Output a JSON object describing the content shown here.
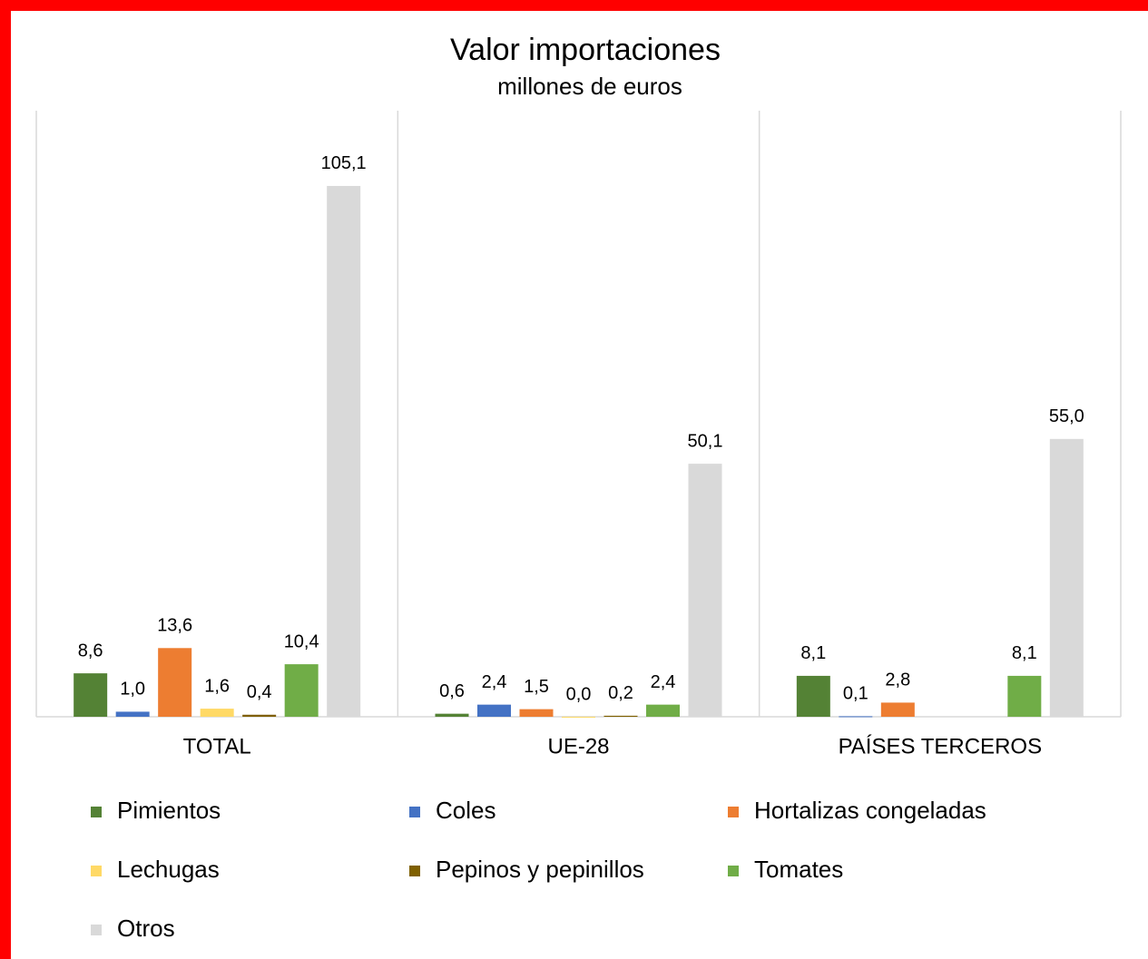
{
  "chart_data": {
    "type": "bar",
    "title": "Valor importaciones",
    "subtitle": "millones de euros",
    "categories": [
      "TOTAL",
      "UE-28",
      "PAÍSES TERCEROS"
    ],
    "ylim": [
      0,
      120
    ],
    "series": [
      {
        "name": "Pimientos",
        "color": "#548235",
        "values": [
          8.6,
          0.6,
          8.1
        ],
        "value_labels": [
          "8,6",
          "0,6",
          "8,1"
        ]
      },
      {
        "name": "Coles",
        "color": "#4472c4",
        "values": [
          1.0,
          2.4,
          0.1
        ],
        "value_labels": [
          "1,0",
          "2,4",
          "0,1"
        ]
      },
      {
        "name": "Hortalizas congeladas",
        "color": "#ed7d31",
        "values": [
          13.6,
          1.5,
          2.8
        ],
        "value_labels": [
          "13,6",
          "1,5",
          "2,8"
        ]
      },
      {
        "name": "Lechugas",
        "color": "#ffd966",
        "values": [
          1.6,
          0.0,
          null
        ],
        "value_labels": [
          "1,6",
          "0,0",
          null
        ]
      },
      {
        "name": "Pepinos y pepinillos",
        "color": "#7f6000",
        "values": [
          0.4,
          0.2,
          null
        ],
        "value_labels": [
          "0,4",
          "0,2",
          null
        ]
      },
      {
        "name": "Tomates",
        "color": "#70ad47",
        "values": [
          10.4,
          2.4,
          8.1
        ],
        "value_labels": [
          "10,4",
          "2,4",
          "8,1"
        ]
      },
      {
        "name": "Otros",
        "color": "#d9d9d9",
        "values": [
          105.1,
          50.1,
          55.0
        ],
        "value_labels": [
          "105,1",
          "50,1",
          "55,0"
        ]
      }
    ],
    "legend": "bottom"
  }
}
